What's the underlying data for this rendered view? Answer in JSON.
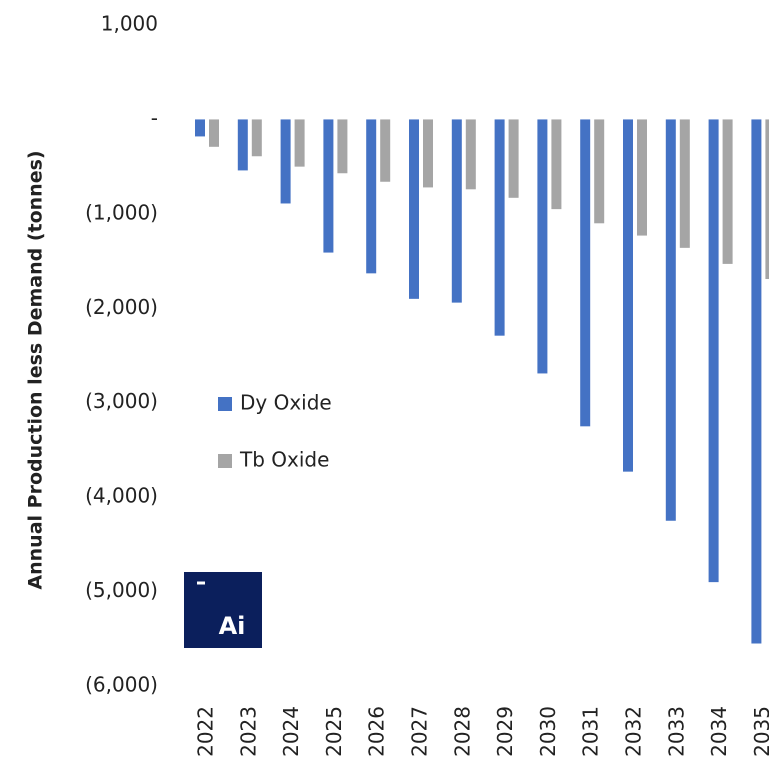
{
  "chart_data": {
    "type": "bar",
    "y_label": "Annual Production less Demand (tonnes)",
    "categories": [
      "2022",
      "2023",
      "2024",
      "2025",
      "2026",
      "2027",
      "2028",
      "2029",
      "2030",
      "2031",
      "2032",
      "2033",
      "2034",
      "2035"
    ],
    "series": [
      {
        "name": "Dy Oxide",
        "color": "#4472c4",
        "values": [
          -180,
          -540,
          -890,
          -1410,
          -1630,
          -1900,
          -1940,
          -2290,
          -2690,
          -3250,
          -3730,
          -4250,
          -4900,
          -5550
        ]
      },
      {
        "name": "Tb Oxide",
        "color": "#a5a5a5",
        "values": [
          -290,
          -390,
          -500,
          -570,
          -660,
          -720,
          -740,
          -830,
          -950,
          -1100,
          -1230,
          -1360,
          -1530,
          -1690
        ]
      }
    ],
    "ylim": [
      -6000,
      1000
    ],
    "yticks": [
      {
        "value": 1000,
        "label": "1,000"
      },
      {
        "value": 0,
        "label": "-"
      },
      {
        "value": -1000,
        "label": "(1,000)"
      },
      {
        "value": -2000,
        "label": "(2,000)"
      },
      {
        "value": -3000,
        "label": "(3,000)"
      },
      {
        "value": -4000,
        "label": "(4,000)"
      },
      {
        "value": -5000,
        "label": "(5,000)"
      },
      {
        "value": -6000,
        "label": "(6,000)"
      }
    ],
    "grid": false,
    "watermark": "Ai"
  }
}
